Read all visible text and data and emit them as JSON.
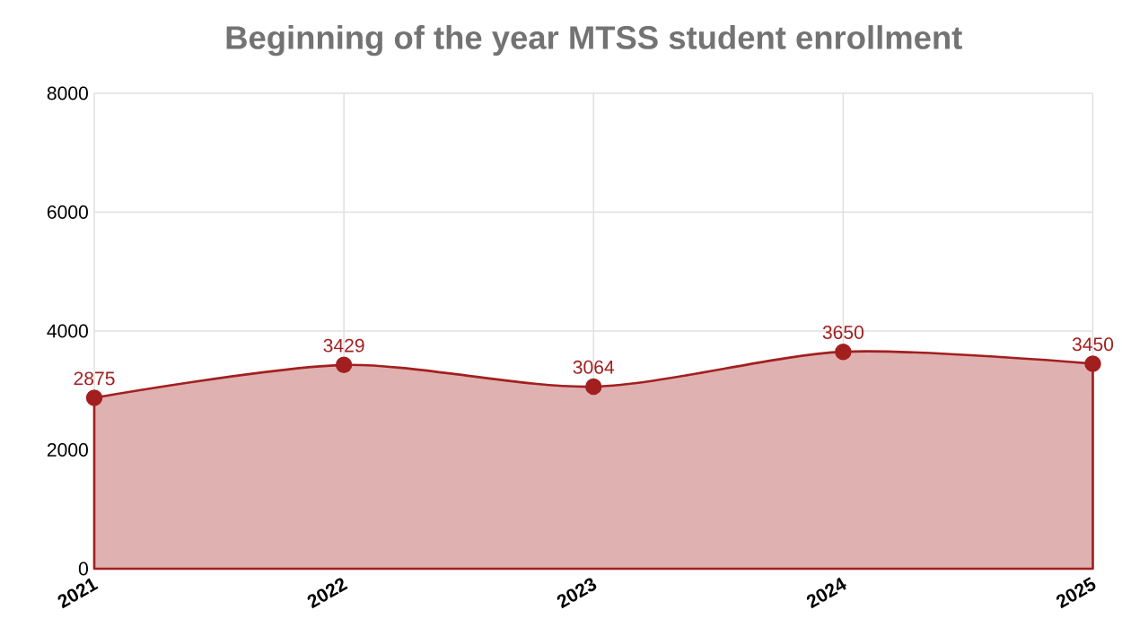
{
  "chart_data": {
    "type": "area",
    "title": "Beginning of the year MTSS student enrollment",
    "categories": [
      "2021",
      "2022",
      "2023",
      "2024",
      "2025"
    ],
    "series": [
      {
        "color": "#a31f1f",
        "values": [
          2875,
          3429,
          3064,
          3650,
          3450
        ]
      }
    ],
    "ylim": [
      0,
      8000
    ],
    "yticks": [
      0,
      2000,
      4000,
      6000,
      8000
    ],
    "grid": true,
    "marker": "circle",
    "data_labels": true
  }
}
